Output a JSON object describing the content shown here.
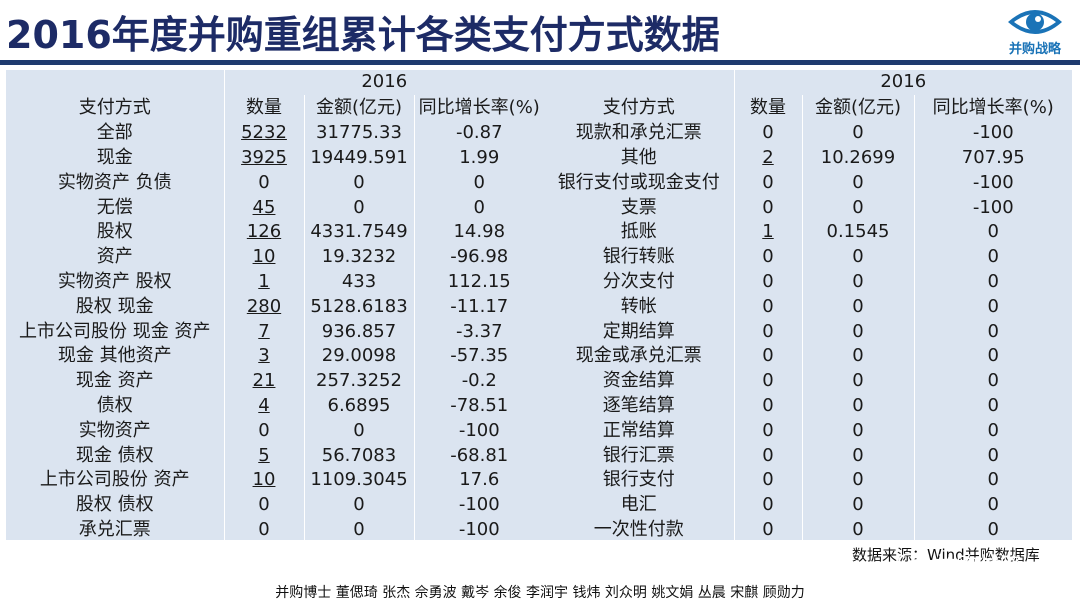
{
  "title": "2016年度并购重组累计各类支付方式数据",
  "logo": {
    "icon": "eye-icon",
    "text": "并购战略",
    "color": "#1a73b7"
  },
  "colors": {
    "title": "#1d2b66",
    "panel": "#dbe4f0",
    "rule": "#1f3b6f"
  },
  "left": {
    "year": "2016",
    "headers": [
      "支付方式",
      "数量",
      "金额(亿元)",
      "同比增长率(%)"
    ],
    "rows": [
      {
        "method": "全部",
        "count": "5232",
        "amount": "31775.33",
        "growth": "-0.87"
      },
      {
        "method": "现金",
        "count": "3925",
        "amount": "19449.591",
        "growth": "1.99"
      },
      {
        "method": "实物资产 负债",
        "count": "0",
        "amount": "0",
        "growth": "0"
      },
      {
        "method": "无偿",
        "count": "45",
        "amount": "0",
        "growth": "0"
      },
      {
        "method": "股权",
        "count": "126",
        "amount": "4331.7549",
        "growth": "14.98"
      },
      {
        "method": "资产",
        "count": "10",
        "amount": "19.3232",
        "growth": "-96.98"
      },
      {
        "method": "实物资产 股权",
        "count": "1",
        "amount": "433",
        "growth": "112.15"
      },
      {
        "method": "股权 现金",
        "count": "280",
        "amount": "5128.6183",
        "growth": "-11.17"
      },
      {
        "method": "上市公司股份 现金 资产",
        "count": "7",
        "amount": "936.857",
        "growth": "-3.37"
      },
      {
        "method": "现金 其他资产",
        "count": "3",
        "amount": "29.0098",
        "growth": "-57.35"
      },
      {
        "method": "现金 资产",
        "count": "21",
        "amount": "257.3252",
        "growth": "-0.2"
      },
      {
        "method": "债权",
        "count": "4",
        "amount": "6.6895",
        "growth": "-78.51"
      },
      {
        "method": "实物资产",
        "count": "0",
        "amount": "0",
        "growth": "-100"
      },
      {
        "method": "现金 债权",
        "count": "5",
        "amount": "56.7083",
        "growth": "-68.81"
      },
      {
        "method": "上市公司股份 资产",
        "count": "10",
        "amount": "1109.3045",
        "growth": "17.6"
      },
      {
        "method": "股权 债权",
        "count": "0",
        "amount": "0",
        "growth": "-100"
      },
      {
        "method": "承兑汇票",
        "count": "0",
        "amount": "0",
        "growth": "-100"
      }
    ]
  },
  "right": {
    "year": "2016",
    "headers": [
      "支付方式",
      "数量",
      "金额(亿元)",
      "同比增长率(%)"
    ],
    "rows": [
      {
        "method": "现款和承兑汇票",
        "count": "0",
        "amount": "0",
        "growth": "-100"
      },
      {
        "method": "其他",
        "count": "2",
        "amount": "10.2699",
        "growth": "707.95"
      },
      {
        "method": "银行支付或现金支付",
        "count": "0",
        "amount": "0",
        "growth": "-100"
      },
      {
        "method": "支票",
        "count": "0",
        "amount": "0",
        "growth": "-100"
      },
      {
        "method": "抵账",
        "count": "1",
        "amount": "0.1545",
        "growth": "0"
      },
      {
        "method": "银行转账",
        "count": "0",
        "amount": "0",
        "growth": "0"
      },
      {
        "method": "分次支付",
        "count": "0",
        "amount": "0",
        "growth": "0"
      },
      {
        "method": "转帐",
        "count": "0",
        "amount": "0",
        "growth": "0"
      },
      {
        "method": "定期结算",
        "count": "0",
        "amount": "0",
        "growth": "0"
      },
      {
        "method": "现金或承兑汇票",
        "count": "0",
        "amount": "0",
        "growth": "0"
      },
      {
        "method": "资金结算",
        "count": "0",
        "amount": "0",
        "growth": "0"
      },
      {
        "method": "逐笔结算",
        "count": "0",
        "amount": "0",
        "growth": "0"
      },
      {
        "method": "正常结算",
        "count": "0",
        "amount": "0",
        "growth": "0"
      },
      {
        "method": "银行汇票",
        "count": "0",
        "amount": "0",
        "growth": "0"
      },
      {
        "method": "银行支付",
        "count": "0",
        "amount": "0",
        "growth": "0"
      },
      {
        "method": "电汇",
        "count": "0",
        "amount": "0",
        "growth": "0"
      },
      {
        "method": "一次性付款",
        "count": "0",
        "amount": "0",
        "growth": "0"
      }
    ]
  },
  "source": "数据来源：Wind并购数据库",
  "watermark": {
    "icon": "wechat-icon",
    "text": "并购战略"
  },
  "footer": "并购博士 董偲琦 张杰 佘勇波 戴岑 余俊 李润宇 钱炜 刘众明 姚文娟 丛晨 宋麒 顾勋力"
}
